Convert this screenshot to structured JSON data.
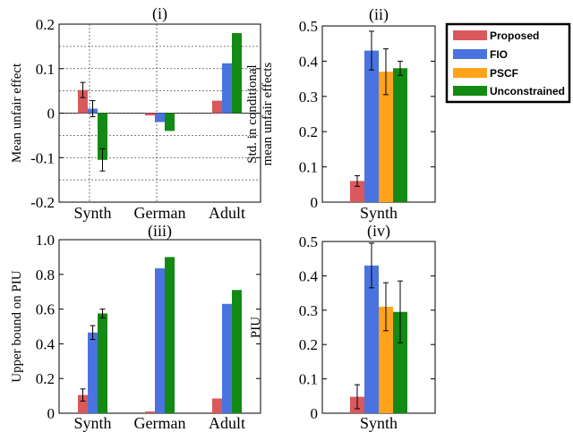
{
  "colors": {
    "Proposed": "#d9595c",
    "FIO": "#4a73e0",
    "PSCF": "#ffa31a",
    "Unconstrained": "#138a13",
    "grid": "#555555"
  },
  "legend": {
    "items": [
      "Proposed",
      "FIO",
      "PSCF",
      "Unconstrained"
    ]
  },
  "chart_data": [
    {
      "panel": "(i)",
      "type": "bar",
      "title": "(i)",
      "ylabel": [
        "Mean unfair effect"
      ],
      "ylim": [
        -0.2,
        0.2
      ],
      "ytick_values": [
        -0.2,
        -0.1,
        0,
        0.1,
        0.2
      ],
      "ytick_labels": [
        "-0.2",
        "-0.1",
        "0",
        "0.1",
        "0.2"
      ],
      "categories": [
        "Synth",
        "German",
        "Adult"
      ],
      "grid": true,
      "series": [
        {
          "name": "Proposed",
          "values": [
            0.052,
            -0.005,
            0.028
          ],
          "errors": [
            0.017,
            null,
            null
          ]
        },
        {
          "name": "FIO",
          "values": [
            0.01,
            -0.02,
            0.112
          ],
          "errors": [
            0.018,
            null,
            null
          ]
        },
        {
          "name": "Unconstrained",
          "values": [
            -0.105,
            -0.04,
            0.18
          ],
          "errors": [
            0.025,
            null,
            null
          ]
        }
      ]
    },
    {
      "panel": "(ii)",
      "type": "bar",
      "title": "(ii)",
      "ylabel": [
        "Std. in conditional",
        "mean unfair effects"
      ],
      "ylim": [
        0,
        0.5
      ],
      "ytick_values": [
        0,
        0.1,
        0.2,
        0.3,
        0.4,
        0.5
      ],
      "ytick_labels": [
        "0",
        "0.1",
        "0.2",
        "0.3",
        "0.4",
        "0.5"
      ],
      "categories": [
        "Synth"
      ],
      "grid": false,
      "series": [
        {
          "name": "Proposed",
          "values": [
            0.06
          ],
          "errors": [
            0.015
          ]
        },
        {
          "name": "FIO",
          "values": [
            0.43
          ],
          "errors": [
            0.055
          ]
        },
        {
          "name": "PSCF",
          "values": [
            0.37
          ],
          "errors": [
            0.065
          ]
        },
        {
          "name": "Unconstrained",
          "values": [
            0.38
          ],
          "errors": [
            0.02
          ]
        }
      ],
      "legend": "top-right"
    },
    {
      "panel": "(iii)",
      "type": "bar",
      "title": "(iii)",
      "ylabel": [
        "Upper bound on PIU"
      ],
      "ylim": [
        0,
        1.0
      ],
      "ytick_values": [
        0,
        0.2,
        0.4,
        0.6,
        0.8,
        1.0
      ],
      "ytick_labels": [
        "0",
        "0.2",
        "0.4",
        "0.6",
        "0.8",
        "1.0"
      ],
      "categories": [
        "Synth",
        "German",
        "Adult"
      ],
      "grid": false,
      "series": [
        {
          "name": "Proposed",
          "values": [
            0.105,
            0.01,
            0.085
          ],
          "errors": [
            0.035,
            null,
            null
          ]
        },
        {
          "name": "FIO",
          "values": [
            0.465,
            0.835,
            0.63
          ],
          "errors": [
            0.04,
            null,
            null
          ]
        },
        {
          "name": "Unconstrained",
          "values": [
            0.575,
            0.9,
            0.71
          ],
          "errors": [
            0.025,
            null,
            null
          ]
        }
      ]
    },
    {
      "panel": "(iv)",
      "type": "bar",
      "title": "(iv)",
      "ylabel": [
        "PIU"
      ],
      "ylim": [
        0,
        0.5
      ],
      "ytick_values": [
        0,
        0.1,
        0.2,
        0.3,
        0.4,
        0.5
      ],
      "ytick_labels": [
        "0",
        "0.1",
        "0.2",
        "0.3",
        "0.4",
        "0.5"
      ],
      "categories": [
        "Synth"
      ],
      "grid": false,
      "series": [
        {
          "name": "Proposed",
          "values": [
            0.048
          ],
          "errors": [
            0.035
          ]
        },
        {
          "name": "FIO",
          "values": [
            0.43
          ],
          "errors": [
            0.065
          ]
        },
        {
          "name": "PSCF",
          "values": [
            0.31
          ],
          "errors": [
            0.07
          ]
        },
        {
          "name": "Unconstrained",
          "values": [
            0.295
          ],
          "errors": [
            0.09
          ]
        }
      ]
    }
  ]
}
